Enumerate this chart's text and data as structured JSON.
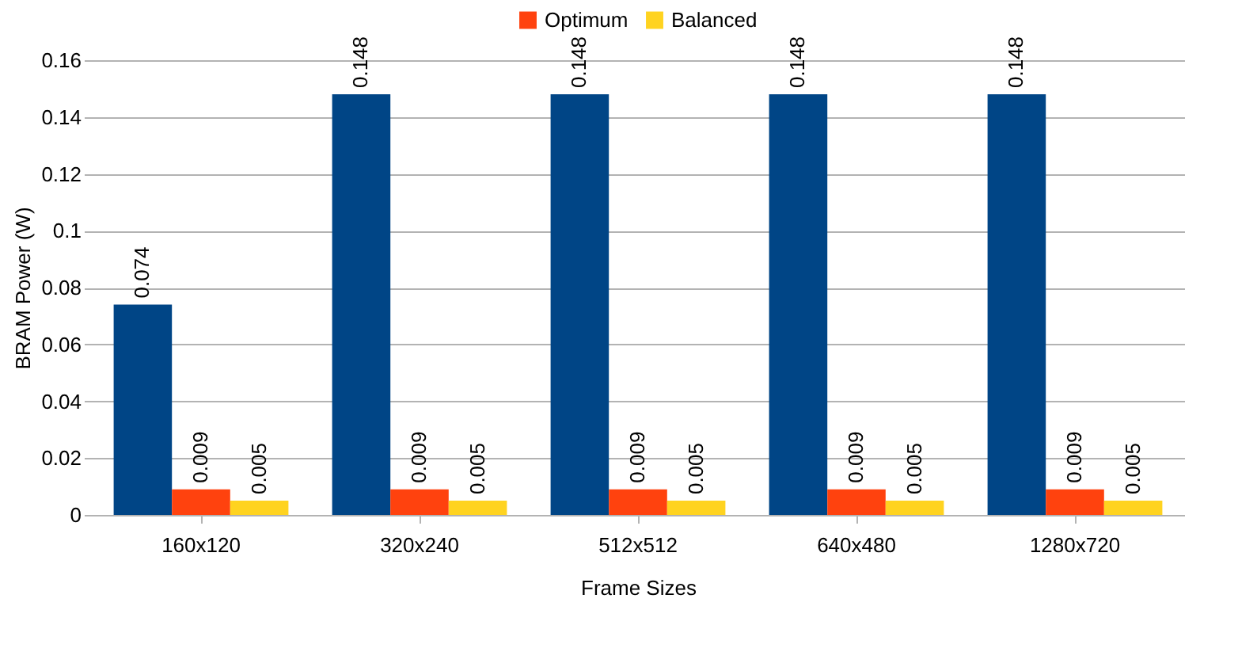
{
  "chart_data": {
    "type": "bar",
    "xlabel": "Frame Sizes",
    "ylabel": "BRAM Power (W)",
    "categories": [
      "160x120",
      "320x240",
      "512x512",
      "640x480",
      "1280x720"
    ],
    "series": [
      {
        "color": "#004586",
        "values": [
          0.074,
          0.148,
          0.148,
          0.148,
          0.148
        ]
      },
      {
        "name": "Optimum",
        "color": "#ff420e",
        "values": [
          0.009,
          0.009,
          0.009,
          0.009,
          0.009
        ]
      },
      {
        "name": "Balanced",
        "color": "#ffd320",
        "values": [
          0.005,
          0.005,
          0.005,
          0.005,
          0.005
        ]
      }
    ],
    "ylim": [
      0,
      0.16
    ],
    "yticks": [
      0,
      0.02,
      0.04,
      0.06,
      0.08,
      0.1,
      0.12,
      0.14,
      0.16
    ],
    "grid": "y",
    "legend": "top",
    "data_labels": true
  }
}
